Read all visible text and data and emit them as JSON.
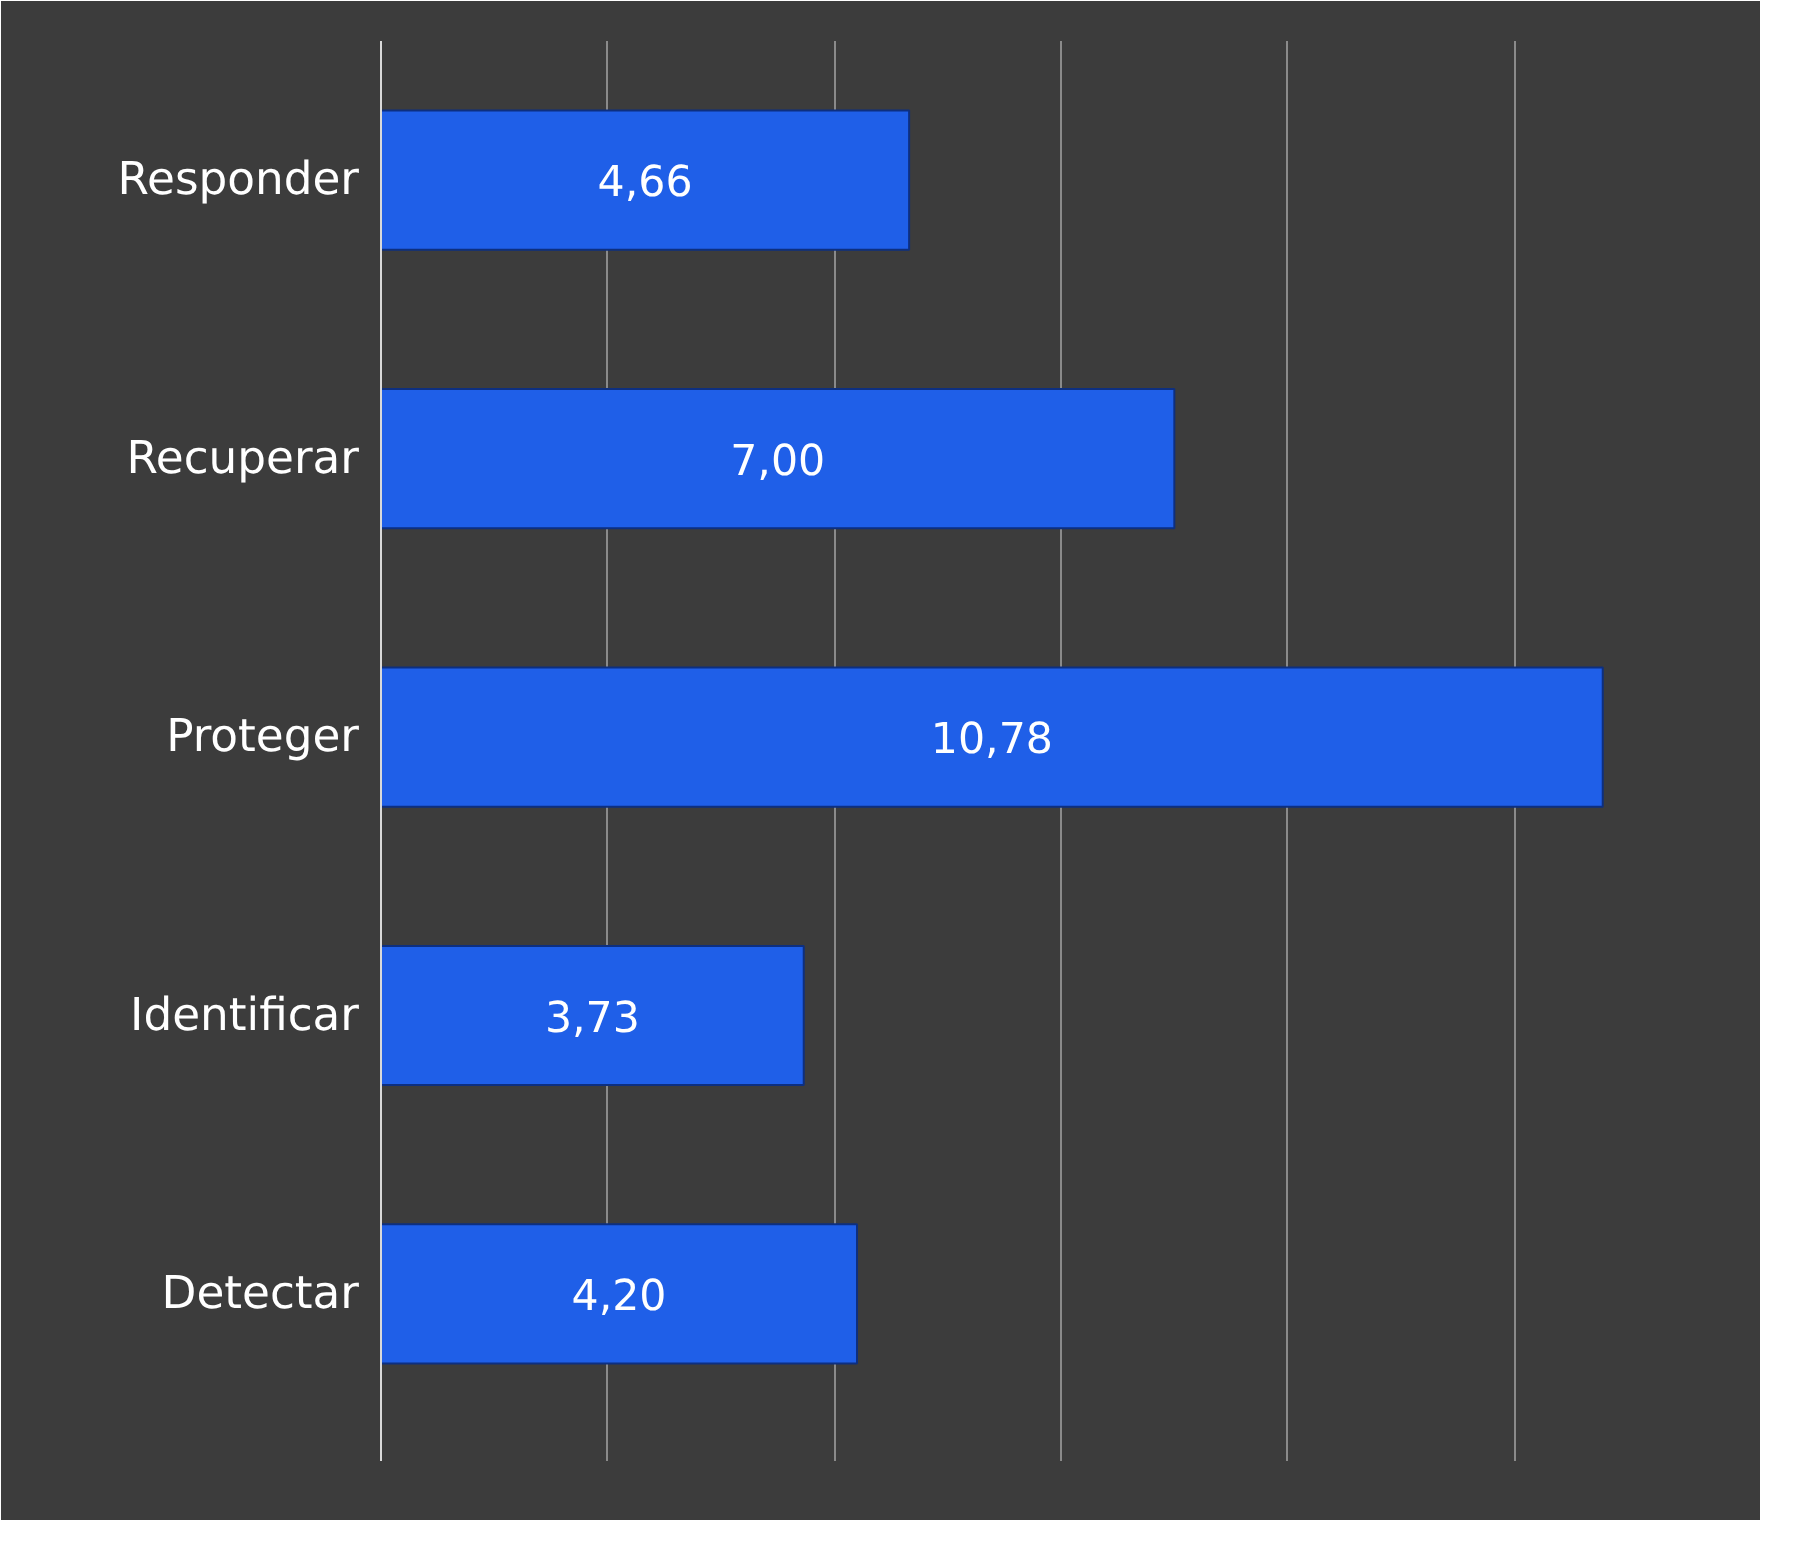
{
  "chart_data": {
    "type": "bar",
    "orientation": "horizontal",
    "categories": [
      "Responder",
      "Recuperar",
      "Proteger",
      "Identificar",
      "Detectar"
    ],
    "values": [
      4.66,
      7.0,
      10.78,
      3.73,
      4.2
    ],
    "value_labels": [
      "4,66",
      "7,00",
      "10,78",
      "3,73",
      "4,20"
    ],
    "color": "#1f5fe8",
    "xlim": [
      0,
      12
    ],
    "xticks": [
      {
        "value": 0,
        "label": null
      },
      {
        "value": 2,
        "label": null
      },
      {
        "value": 4,
        "label": null
      },
      {
        "value": 6,
        "label": null
      },
      {
        "value": 8,
        "label": null
      },
      {
        "value": 10,
        "label": null
      },
      {
        "value": 12,
        "label": null
      }
    ],
    "grid": "x",
    "tick_labels": "y"
  }
}
